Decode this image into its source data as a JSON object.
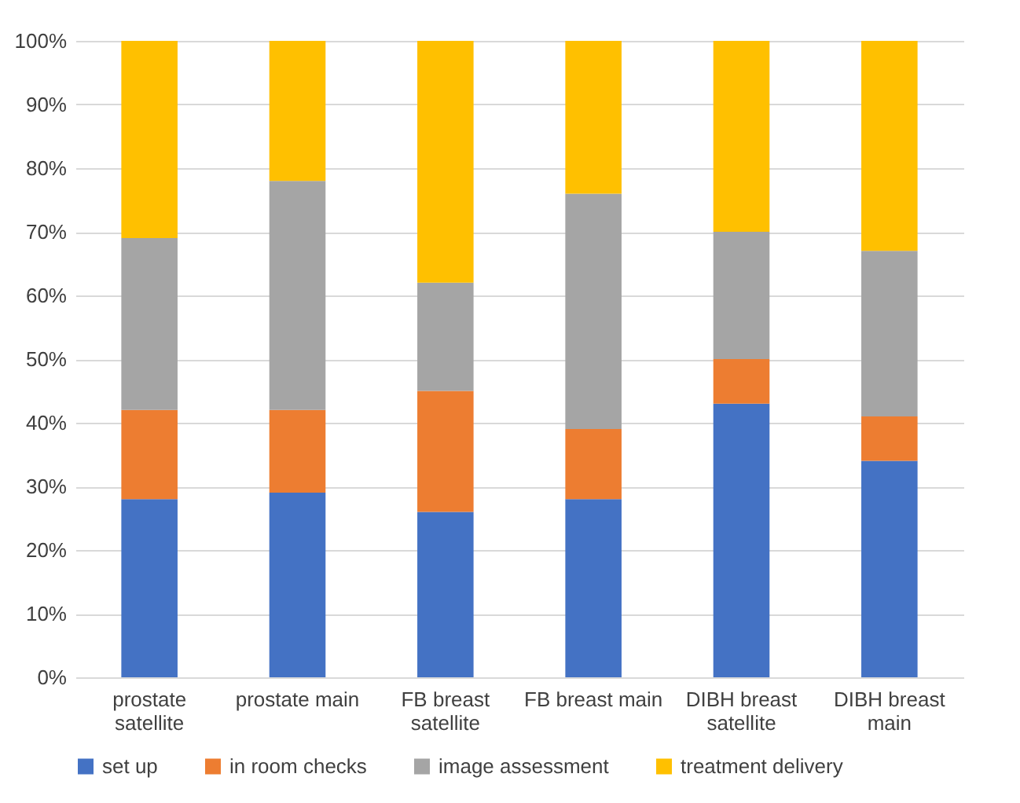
{
  "chart_data": {
    "type": "bar",
    "stacked": true,
    "categories": [
      "prostate satellite",
      "prostate main",
      "FB breast satellite",
      "FB breast main",
      "DIBH breast satellite",
      "DIBH breast main"
    ],
    "series": [
      {
        "name": "set up",
        "color": "#4472c4",
        "values": [
          28,
          29,
          26,
          28,
          43,
          34
        ]
      },
      {
        "name": "in room checks",
        "color": "#ed7d31",
        "values": [
          14,
          13,
          19,
          11,
          7,
          7
        ]
      },
      {
        "name": "image assessment",
        "color": "#a5a5a5",
        "values": [
          27,
          36,
          17,
          37,
          20,
          26
        ]
      },
      {
        "name": "treatment delivery",
        "color": "#ffc000",
        "values": [
          31,
          22,
          38,
          24,
          30,
          33
        ]
      }
    ],
    "ylim": [
      0,
      100
    ],
    "yticks": [
      {
        "value": 0,
        "label": "0%"
      },
      {
        "value": 10,
        "label": "10%"
      },
      {
        "value": 20,
        "label": "20%"
      },
      {
        "value": 30,
        "label": "30%"
      },
      {
        "value": 40,
        "label": "40%"
      },
      {
        "value": 50,
        "label": "50%"
      },
      {
        "value": 60,
        "label": "60%"
      },
      {
        "value": 70,
        "label": "70%"
      },
      {
        "value": 80,
        "label": "80%"
      },
      {
        "value": 90,
        "label": "90%"
      },
      {
        "value": 100,
        "label": "100%"
      }
    ],
    "grid": "y",
    "legend": "bottom"
  }
}
